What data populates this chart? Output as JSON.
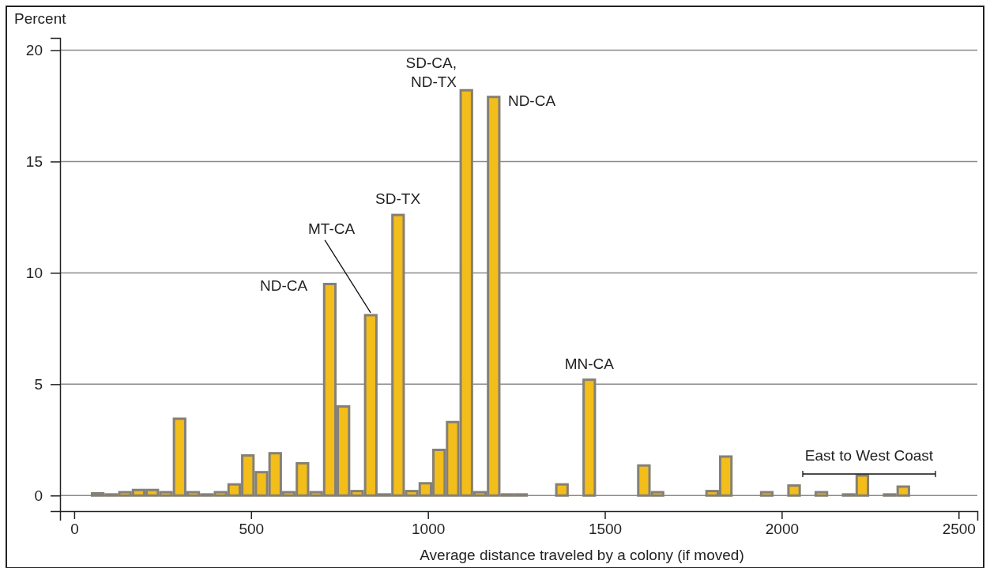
{
  "chart_data": {
    "type": "histogram",
    "ylabel": "Percent",
    "xlabel": "Average distance traveled by a colony (if moved)",
    "bins": [
      47,
      85.6,
      124.2,
      162.8,
      201.4,
      240,
      278.6,
      317.2,
      355.8,
      394.4,
      433,
      471.6,
      510.2,
      548.8,
      587.4,
      626,
      664.6,
      703.2,
      741.8,
      780.4,
      819,
      857.6,
      896.2,
      934.8,
      973.4,
      1012,
      1050.6,
      1089.2,
      1127.8,
      1166.4,
      1205,
      1243.6,
      1282.2,
      1320.8,
      1359.4,
      1398,
      1436.6,
      1475.2,
      1513.8,
      1552.4,
      1591,
      1629.6,
      1668.2,
      1706.8,
      1745.4,
      1784,
      1822.6,
      1861.2,
      1899.8,
      1938.4,
      1977,
      2015.6,
      2054.2,
      2092.8,
      2131.4,
      2170,
      2208.6,
      2247.2,
      2285.8,
      2324.4,
      2363
    ],
    "values": [
      0.1,
      0.05,
      0.15,
      0.25,
      0.25,
      0.15,
      3.45,
      0.15,
      0.05,
      0.15,
      0.5,
      1.8,
      1.05,
      1.9,
      0.15,
      1.45,
      0.15,
      9.5,
      4.0,
      0.2,
      8.1,
      0.05,
      12.6,
      0.2,
      0.55,
      2.05,
      3.3,
      18.2,
      0.15,
      17.9,
      0.05,
      0.05,
      0,
      0,
      0.5,
      0,
      5.2,
      0,
      0,
      0,
      1.35,
      0.15,
      0,
      0,
      0,
      0.2,
      1.75,
      0,
      0,
      0.15,
      0,
      0.45,
      0,
      0.15,
      0,
      0.05,
      0.9,
      0,
      0.05,
      0.4
    ],
    "colors": [
      "#e0daa6",
      "#e0daa6",
      "#f3bd1a",
      "#f3bd1a",
      "#f3bd1a",
      "#f3bd1a",
      "#f3bd1a",
      "#f3bd1a",
      "#e0daa6",
      "#f3bd1a",
      "#f3bd1a",
      "#f3bd1a",
      "#f3bd1a",
      "#f3bd1a",
      "#f3bd1a",
      "#f3bd1a",
      "#f3bd1a",
      "#f3bd1a",
      "#f3bd1a",
      "#f3bd1a",
      "#f3bd1a",
      "#e0daa6",
      "#f3bd1a",
      "#f3bd1a",
      "#f3bd1a",
      "#f3bd1a",
      "#f3bd1a",
      "#f3bd1a",
      "#f3bd1a",
      "#f3bd1a",
      "#e0daa6",
      "#e0daa6",
      "#f3bd1a",
      "#f3bd1a",
      "#f3bd1a",
      "#f3bd1a",
      "#f3bd1a",
      "#f3bd1a",
      "#f3bd1a",
      "#f3bd1a",
      "#f3bd1a",
      "#f3bd1a",
      "#f3bd1a",
      "#f3bd1a",
      "#f3bd1a",
      "#f3bd1a",
      "#f3bd1a",
      "#f3bd1a",
      "#f3bd1a",
      "#f3bd1a",
      "#f3bd1a",
      "#f3bd1a",
      "#f3bd1a",
      "#f3bd1a",
      "#f3bd1a",
      "#f3bd1a",
      "#f3bd1a",
      "#f3bd1a",
      "#f3bd1a",
      "#f3bd1a"
    ],
    "xlim": [
      -40,
      2553
    ],
    "xticks": [
      0,
      500,
      1000,
      1500,
      2000,
      2500
    ],
    "ylim": [
      -0.7,
      20.55
    ],
    "yticks": [
      0,
      5,
      10,
      15,
      20
    ],
    "grid": "y",
    "annotations": [
      {
        "text": "ND-CA",
        "x": 722,
        "y": 9.5
      },
      {
        "text": "MT-CA",
        "x": 838,
        "y": 8.1
      },
      {
        "text": "SD-TX",
        "x": 915,
        "y": 12.6
      },
      {
        "text": "SD-CA,\nND-TX",
        "x": 1108,
        "y": 18.2
      },
      {
        "text": "ND-CA",
        "x": 1186,
        "y": 17.9
      },
      {
        "text": "MN-CA",
        "x": 1456,
        "y": 5.2
      },
      "East to West Coast"
    ]
  }
}
